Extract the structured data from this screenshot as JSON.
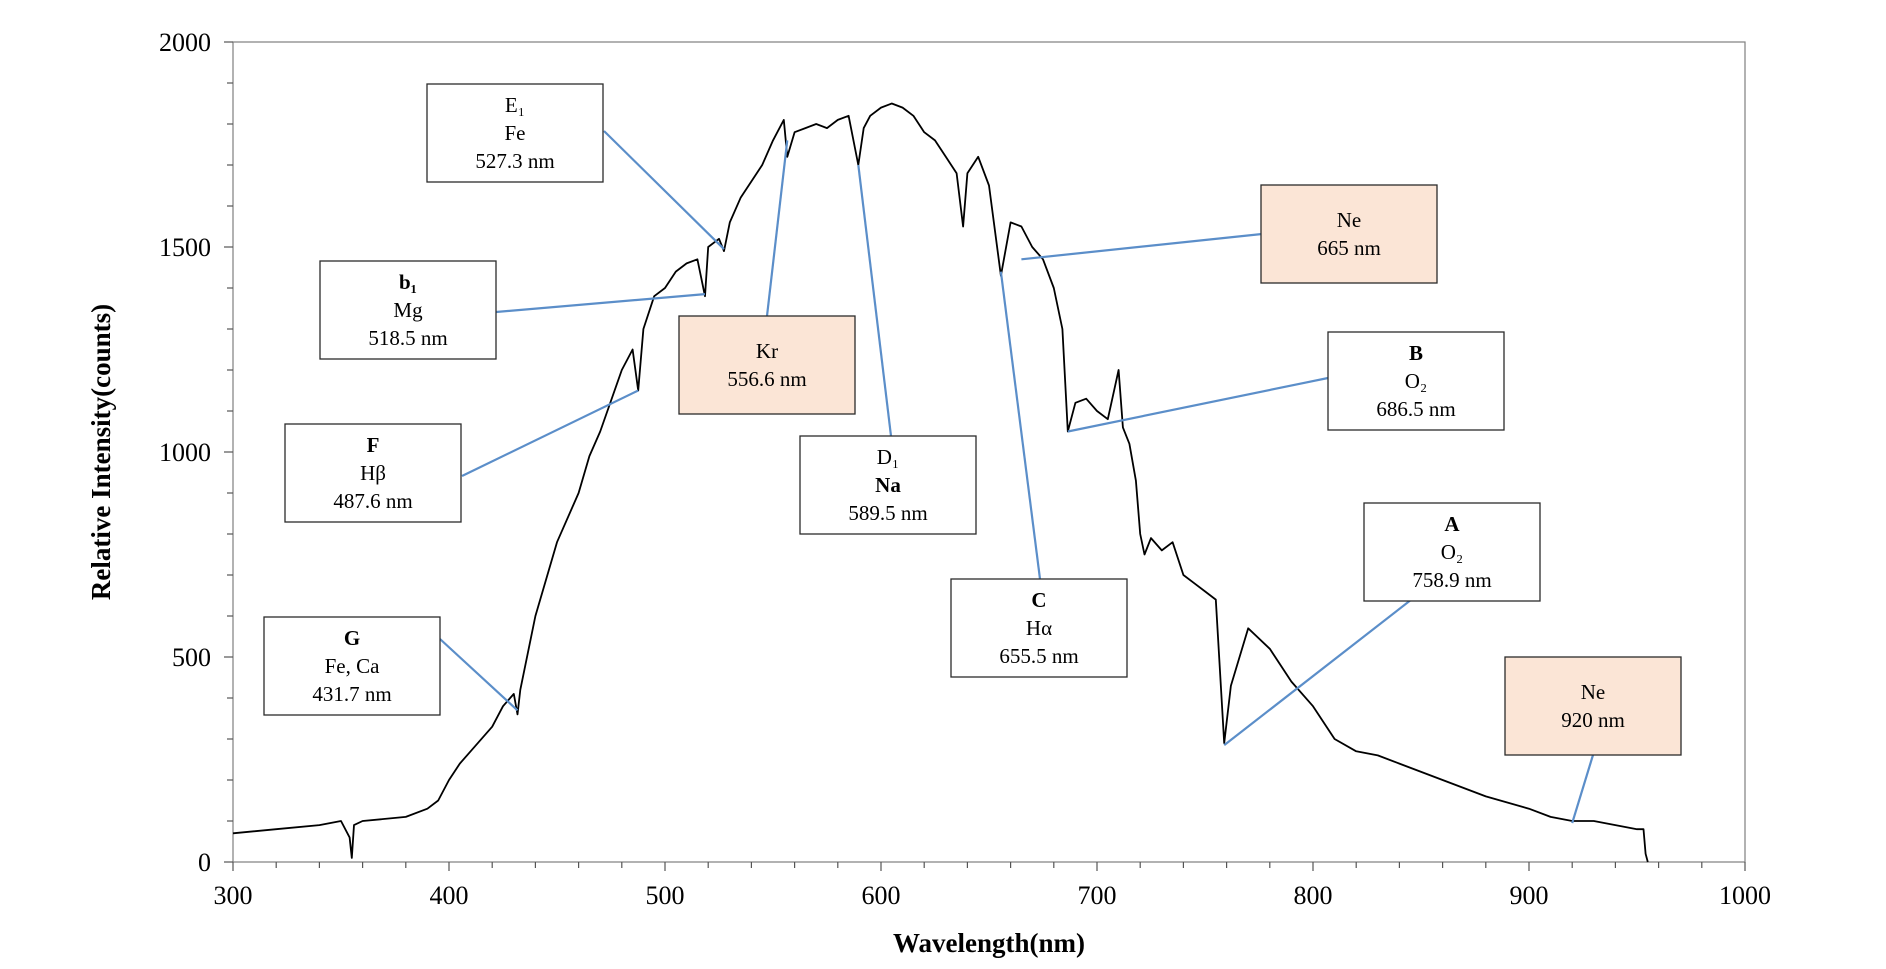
{
  "chart_data": {
    "type": "line",
    "title": "",
    "xlabel": "Wavelength(nm)",
    "ylabel": "Relative Intensity(counts)",
    "xlim": [
      300,
      1000
    ],
    "ylim": [
      0,
      2000
    ],
    "x_ticks": [
      300,
      400,
      500,
      600,
      700,
      800,
      900,
      1000
    ],
    "y_ticks": [
      0,
      500,
      1000,
      1500,
      2000
    ],
    "grid": false,
    "line_color": "#000000",
    "leader_color": "#5b8ec9",
    "highlight_fill": "#fbe5d6",
    "series": [
      {
        "x": [
          300,
          320,
          340,
          350,
          354,
          355,
          356,
          360,
          380,
          390,
          395,
          400,
          405,
          410,
          420,
          425,
          430,
          431.7,
          433,
          440,
          450,
          460,
          465,
          470,
          480,
          485,
          487.6,
          490,
          495,
          500,
          505,
          510,
          515,
          518.5,
          520,
          525,
          527.3,
          530,
          535,
          540,
          545,
          550,
          555,
          556.6,
          560,
          565,
          570,
          575,
          580,
          585,
          589.5,
          592,
          595,
          600,
          605,
          610,
          615,
          620,
          625,
          630,
          635,
          638,
          640,
          645,
          650,
          655.5,
          660,
          665,
          670,
          675,
          680,
          684,
          686.5,
          690,
          695,
          700,
          705,
          710,
          712,
          715,
          718,
          720,
          722,
          725,
          730,
          735,
          740,
          745,
          750,
          755,
          758.9,
          762,
          770,
          780,
          790,
          800,
          810,
          820,
          830,
          840,
          860,
          880,
          900,
          910,
          920,
          930,
          940,
          950,
          953,
          954,
          955
        ],
        "y": [
          70,
          80,
          90,
          100,
          60,
          10,
          90,
          100,
          110,
          130,
          150,
          200,
          240,
          270,
          330,
          380,
          410,
          360,
          420,
          600,
          780,
          900,
          990,
          1050,
          1200,
          1250,
          1150,
          1300,
          1380,
          1400,
          1440,
          1460,
          1470,
          1380,
          1500,
          1520,
          1490,
          1560,
          1620,
          1660,
          1700,
          1760,
          1810,
          1720,
          1780,
          1790,
          1800,
          1790,
          1810,
          1820,
          1700,
          1790,
          1820,
          1840,
          1850,
          1840,
          1820,
          1780,
          1760,
          1720,
          1680,
          1550,
          1680,
          1720,
          1650,
          1430,
          1560,
          1550,
          1500,
          1470,
          1400,
          1300,
          1050,
          1120,
          1130,
          1100,
          1080,
          1200,
          1060,
          1020,
          930,
          800,
          750,
          790,
          760,
          780,
          700,
          680,
          660,
          640,
          290,
          430,
          570,
          520,
          440,
          380,
          300,
          270,
          260,
          240,
          200,
          160,
          130,
          110,
          100,
          100,
          90,
          80,
          80,
          20,
          0
        ]
      }
    ],
    "annotations": [
      {
        "lines": [
          "G",
          "Fe, Ca",
          "431.7 nm"
        ],
        "bold_rows": [
          true,
          false,
          false
        ],
        "highlight": false,
        "target_x": 431.7,
        "target_y": 370
      },
      {
        "lines": [
          "F",
          "Hβ",
          "487.6 nm"
        ],
        "bold_rows": [
          true,
          false,
          false
        ],
        "highlight": false,
        "target_x": 487.6,
        "target_y": 1150
      },
      {
        "lines": [
          "b₁",
          "Mg",
          "518.5 nm"
        ],
        "bold_rows": [
          true,
          false,
          false
        ],
        "highlight": false,
        "target_x": 518.5,
        "target_y": 1385
      },
      {
        "lines": [
          "E₁",
          "Fe",
          "527.3 nm"
        ],
        "bold_rows": [
          false,
          false,
          false
        ],
        "highlight": false,
        "target_x": 527.3,
        "target_y": 1495
      },
      {
        "lines": [
          "Kr",
          "556.6 nm"
        ],
        "bold_rows": [
          false,
          false
        ],
        "highlight": true,
        "target_x": 556.6,
        "target_y": 1760
      },
      {
        "lines": [
          "D₁",
          "Na",
          "589.5 nm"
        ],
        "bold_rows": [
          false,
          true,
          false
        ],
        "highlight": false,
        "target_x": 589.5,
        "target_y": 1700
      },
      {
        "lines": [
          "C",
          "Hα",
          "655.5 nm"
        ],
        "bold_rows": [
          true,
          false,
          false
        ],
        "highlight": false,
        "target_x": 655.5,
        "target_y": 1440
      },
      {
        "lines": [
          "Ne",
          "665 nm"
        ],
        "bold_rows": [
          false,
          false
        ],
        "highlight": true,
        "target_x": 665,
        "target_y": 1470
      },
      {
        "lines": [
          "B",
          "O₂",
          "686.5 nm"
        ],
        "bold_rows": [
          true,
          false,
          false
        ],
        "highlight": false,
        "target_x": 686.5,
        "target_y": 1050
      },
      {
        "lines": [
          "A",
          "O₂",
          "758.9 nm"
        ],
        "bold_rows": [
          true,
          false,
          false
        ],
        "highlight": false,
        "target_x": 758.9,
        "target_y": 285
      },
      {
        "lines": [
          "Ne",
          "920 nm"
        ],
        "bold_rows": [
          false,
          false
        ],
        "highlight": true,
        "target_x": 920,
        "target_y": 95
      }
    ]
  }
}
